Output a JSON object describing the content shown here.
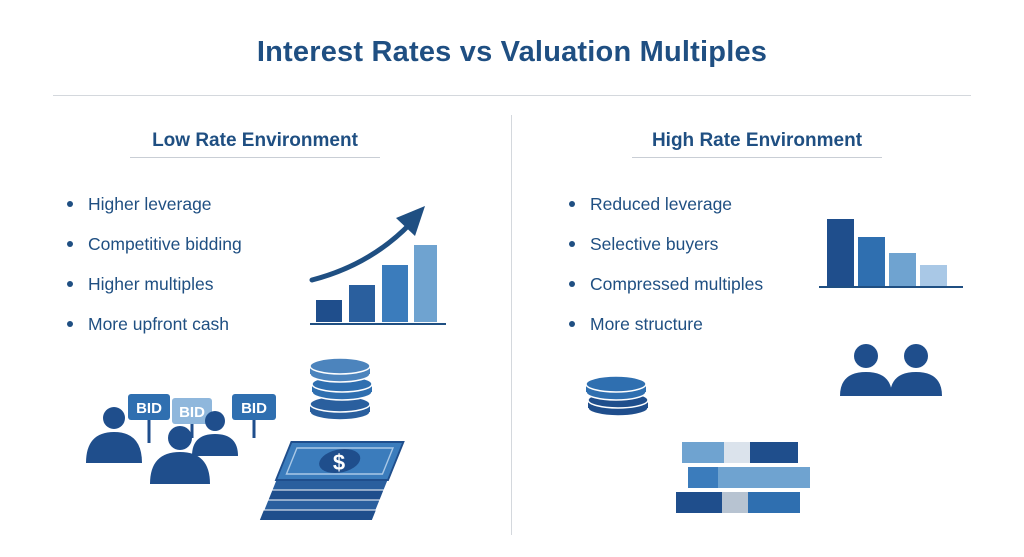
{
  "title": "Interest Rates vs Valuation Multiples",
  "left": {
    "heading": "Low Rate Environment",
    "bullets": [
      "Higher leverage",
      "Competitive bidding",
      "Higher multiples",
      "More upfront cash"
    ],
    "bid_signs": [
      "BID",
      "BID",
      "BID"
    ],
    "money_symbol": "$"
  },
  "right": {
    "heading": "High Rate Environment",
    "bullets": [
      "Reduced leverage",
      "Selective buyers",
      "Compressed multiples",
      "More structure"
    ]
  },
  "colors": {
    "navy": "#1f4f82",
    "dark_blue": "#1f4e8c",
    "mid_blue": "#2f6fb0",
    "light_blue": "#6fa3d0",
    "pale_blue": "#a9c8e6",
    "divider": "#d4d8dd"
  },
  "icons": [
    "trend-up-arrow-icon",
    "rising-bar-chart-icon",
    "coin-stack-icon",
    "bidding-crowd-icon",
    "cash-stack-icon",
    "falling-bar-chart-icon",
    "people-icon",
    "structure-blocks-icon"
  ]
}
